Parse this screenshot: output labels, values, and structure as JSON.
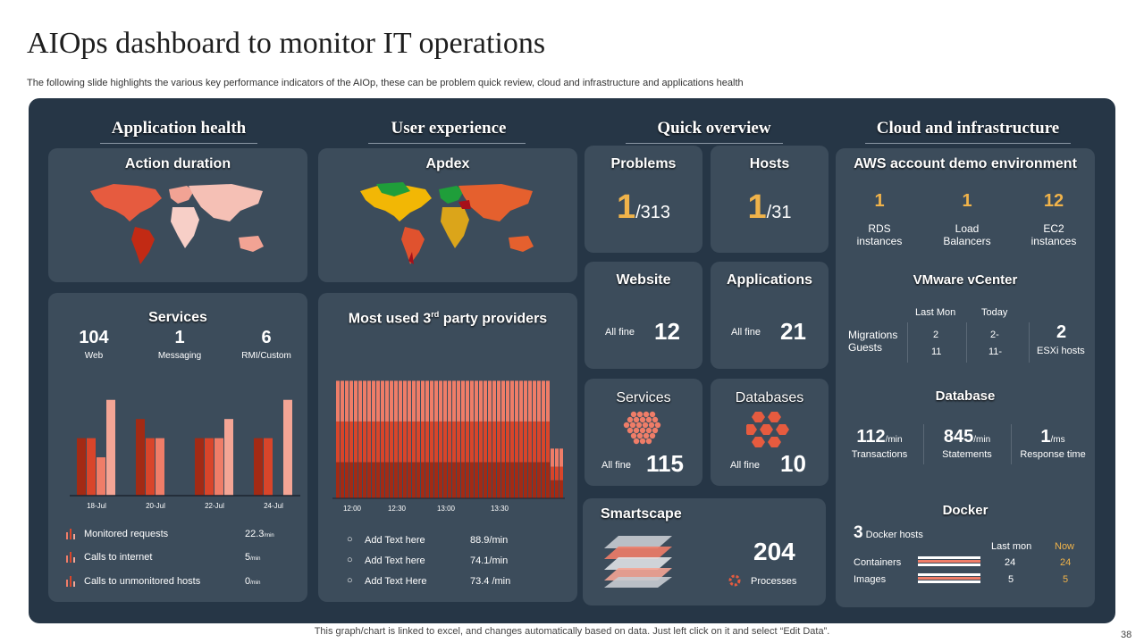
{
  "title": "AIOps dashboard to monitor IT operations",
  "subtitle": "The following slide highlights the various key performance indicators of the AIOp,  these can be problem quick review, cloud and infrastructure and applications health",
  "footer": "This graph/chart is linked to excel,  and changes automatically based on data. Just left click on it and select “Edit Data”.",
  "page_number": "38",
  "sections": {
    "app_health": "Application  health",
    "user_experience": "User experience",
    "quick_overview": "Quick overview",
    "cloud": "Cloud and infrastructure"
  },
  "action_duration": {
    "title": "Action duration"
  },
  "apdex": {
    "title": "Apdex"
  },
  "services_panel": {
    "title": "Services",
    "stats": [
      {
        "value": "104",
        "label": "Web"
      },
      {
        "value": "1",
        "label": "Messaging"
      },
      {
        "value": "6",
        "label": "RMI/Custom"
      }
    ],
    "metrics": [
      {
        "label": "Monitored requests",
        "value": "22.3",
        "unit": "/min"
      },
      {
        "label": "Calls to internet",
        "value": "5",
        "unit": "/min"
      },
      {
        "label": "Calls to unmonitored hosts",
        "value": "0",
        "unit": "/min"
      }
    ]
  },
  "providers": {
    "title_pre": "Most used 3",
    "title_sup": "rd",
    "title_post": " party providers",
    "items": [
      {
        "label": "Add Text here",
        "value": "88.9/min"
      },
      {
        "label": "Add Text here",
        "value": "74.1/min"
      },
      {
        "label": "Add Text Here",
        "value": "73.4 /min"
      }
    ]
  },
  "problems": {
    "title": "Problems",
    "value": "1",
    "total": "/313"
  },
  "hosts": {
    "title": "Hosts",
    "value": "1",
    "total": "/31"
  },
  "website": {
    "title": "Website",
    "status": "All fine",
    "value": "12"
  },
  "applications": {
    "title": "Applications",
    "status": "All fine",
    "value": "21"
  },
  "services_tile": {
    "title": "Services",
    "status": "All fine",
    "value": "115"
  },
  "databases_tile": {
    "title": "Databases",
    "status": "All fine",
    "value": "10"
  },
  "smartscape": {
    "title": "Smartscape",
    "value": "204",
    "label": "Processes"
  },
  "aws": {
    "title": "AWS account demo environment",
    "items": [
      {
        "value": "1",
        "label1": "RDS",
        "label2": "instances"
      },
      {
        "value": "1",
        "label1": "Load",
        "label2": "Balancers"
      },
      {
        "value": "12",
        "label1": "EC2",
        "label2": "instances"
      }
    ]
  },
  "vmware": {
    "title": "VMware vCenter",
    "col_last": "Last Mon",
    "col_today": "Today",
    "row1": "Migrations",
    "row2": "Guests",
    "last_values": [
      "2",
      "11"
    ],
    "today_values": [
      "2-",
      "11-"
    ],
    "esxi_value": "2",
    "esxi_label": "ESXi  hosts"
  },
  "database": {
    "title": "Database",
    "items": [
      {
        "value": "112",
        "unit": "/min",
        "label": "Transactions"
      },
      {
        "value": "845",
        "unit": "/min",
        "label": "Statements"
      },
      {
        "value": "1",
        "unit": "/ms",
        "label": "Response time"
      }
    ]
  },
  "docker": {
    "title": "Docker",
    "hosts_value": "3",
    "hosts_label": " Docker hosts",
    "col_last": "Last mon",
    "col_now": "Now",
    "rows": [
      {
        "label": "Containers",
        "last": "24",
        "now": "24"
      },
      {
        "label": "Images",
        "last": "5",
        "now": "5"
      }
    ]
  },
  "colors": {
    "board": "#263646",
    "card": "#3c4c5b",
    "accent": "#f0b34a",
    "bar_dark": "#a32a14",
    "bar_mid": "#d9452a",
    "bar_light": "#ef7d68",
    "bar_pale": "#f4a595"
  },
  "chart_data": [
    {
      "type": "bar",
      "title": "Services",
      "categories": [
        "18-Jul",
        "20-Jul",
        "22-Jul",
        "24-Jul"
      ],
      "series": [
        {
          "values": [
            3,
            4,
            3,
            3
          ]
        },
        {
          "values": [
            3,
            3,
            3,
            3
          ]
        },
        {
          "values": [
            2,
            3,
            3,
            0
          ]
        },
        {
          "values": [
            5,
            0,
            4,
            5
          ]
        }
      ],
      "ylim": [
        0,
        5.5
      ],
      "grid": false
    },
    {
      "type": "bar",
      "stacked": true,
      "title": "Most used 3rd party providers",
      "x_ticks": [
        "12:00",
        "12:30",
        "13:00",
        "13:30"
      ],
      "series": [
        {
          "values": [
            40,
            40,
            40,
            40,
            40,
            40,
            40,
            40,
            40,
            40,
            40,
            40,
            40,
            40,
            40,
            40,
            40,
            40,
            40,
            40,
            40,
            40,
            40,
            40,
            40,
            40,
            40,
            40,
            40,
            40,
            40,
            40,
            40,
            40,
            40,
            40,
            40,
            40,
            40,
            40,
            40,
            40,
            40,
            40,
            40,
            40,
            40,
            40,
            20,
            20,
            20
          ]
        },
        {
          "values": [
            45,
            45,
            45,
            45,
            45,
            45,
            45,
            45,
            45,
            45,
            45,
            45,
            45,
            45,
            45,
            45,
            45,
            45,
            45,
            45,
            45,
            45,
            45,
            45,
            45,
            45,
            45,
            45,
            45,
            45,
            45,
            45,
            45,
            45,
            45,
            45,
            45,
            45,
            45,
            45,
            45,
            45,
            45,
            45,
            45,
            45,
            45,
            45,
            15,
            15,
            15
          ]
        },
        {
          "values": [
            45,
            45,
            45,
            45,
            45,
            45,
            45,
            45,
            45,
            45,
            45,
            45,
            45,
            45,
            45,
            45,
            45,
            45,
            45,
            45,
            45,
            45,
            45,
            45,
            45,
            45,
            45,
            45,
            45,
            45,
            45,
            45,
            45,
            45,
            45,
            45,
            45,
            45,
            45,
            45,
            45,
            45,
            45,
            45,
            45,
            45,
            45,
            45,
            20,
            20,
            20
          ]
        }
      ],
      "ylim": [
        0,
        160
      ]
    }
  ]
}
